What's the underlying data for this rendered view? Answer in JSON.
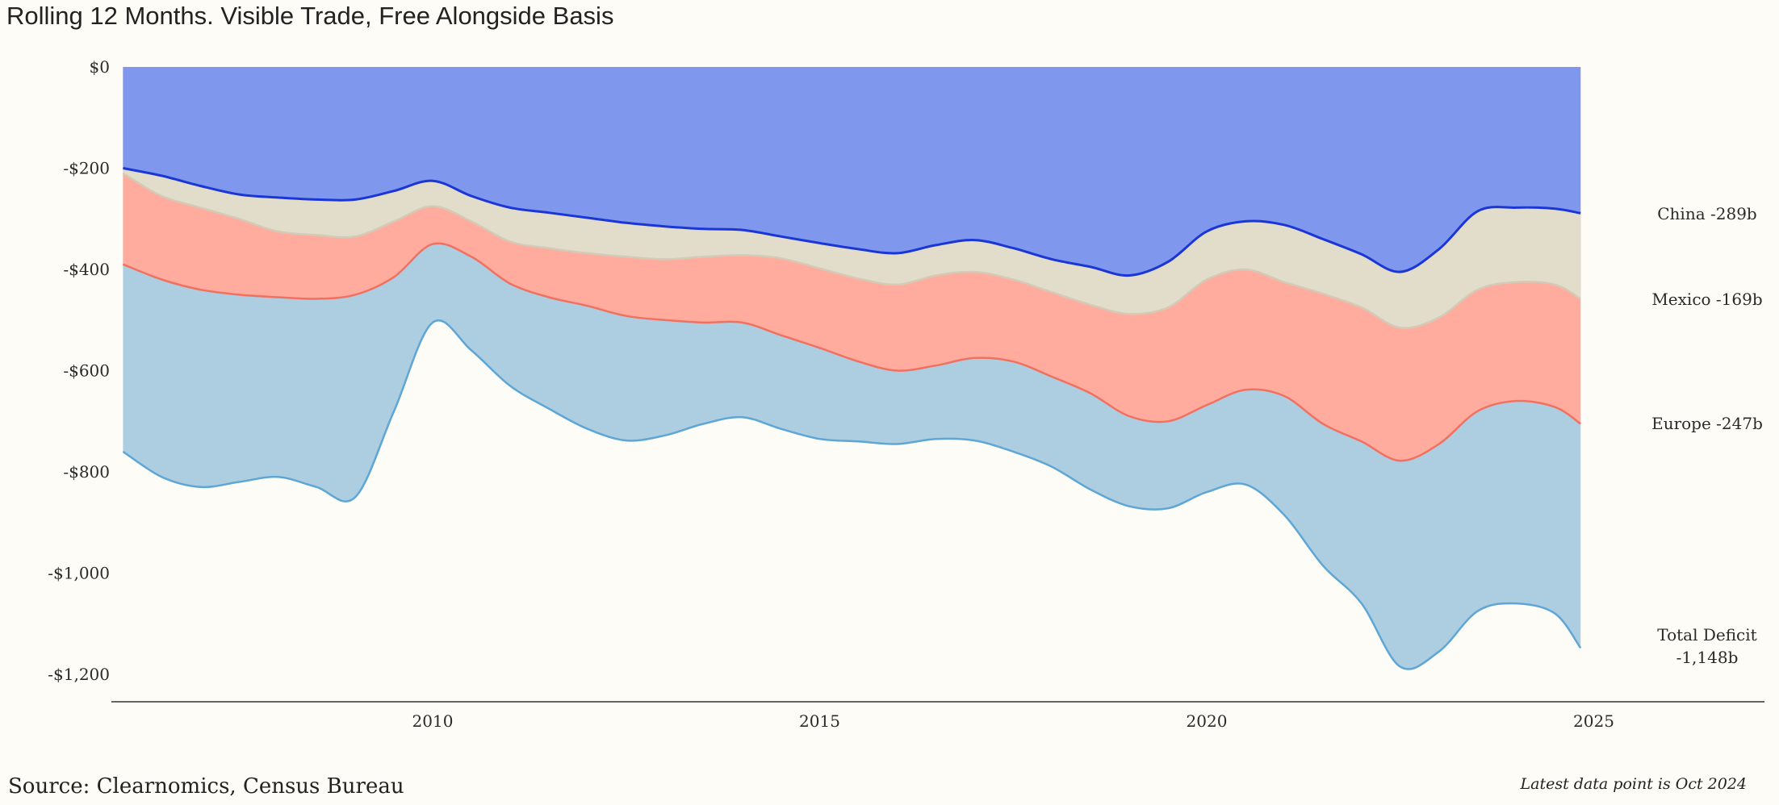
{
  "title": "Rolling 12 Months. Visible Trade, Free Alongside Basis",
  "source": "Source: Clearnomics, Census Bureau",
  "note": "Latest data point is Oct 2024",
  "colors": {
    "background": "#fefcf6",
    "china_fill": "#7f97ec",
    "china_line": "#1a36d6",
    "mexico_fill": "#e2dccb",
    "mexico_line": "#d3cbb6",
    "europe_fill": "#ffac9f",
    "europe_line": "#f2705f",
    "total_fill": "#adcde0",
    "total_line": "#5ea6d6",
    "axis": "#333333"
  },
  "chart_data": {
    "type": "area",
    "title": "Rolling 12 Months. Visible Trade, Free Alongside Basis",
    "xlabel": "",
    "ylabel": "",
    "xlim": [
      2006.0,
      2027.0
    ],
    "ylim": [
      -1250,
      0
    ],
    "grid": false,
    "x_ticks": [
      2010,
      2015,
      2020,
      2025
    ],
    "x_tick_labels": [
      "2010",
      "2015",
      "2020",
      "2025"
    ],
    "y_ticks": [
      0,
      -200,
      -400,
      -600,
      -800,
      -1000,
      -1200
    ],
    "y_tick_labels": [
      "$0",
      "-$200",
      "-$400",
      "-$600",
      "-$800",
      "-$1,000",
      "-$1,200"
    ],
    "x": [
      2006.0,
      2006.5,
      2007.0,
      2007.5,
      2008.0,
      2008.5,
      2009.0,
      2009.5,
      2010.0,
      2010.5,
      2011.0,
      2011.5,
      2012.0,
      2012.5,
      2013.0,
      2013.5,
      2014.0,
      2014.5,
      2015.0,
      2015.5,
      2016.0,
      2016.5,
      2017.0,
      2017.5,
      2018.0,
      2018.5,
      2019.0,
      2019.5,
      2020.0,
      2020.5,
      2021.0,
      2021.5,
      2022.0,
      2022.5,
      2023.0,
      2023.5,
      2024.0,
      2024.5,
      2024.83
    ],
    "series": [
      {
        "name": "China",
        "label": "China -289b",
        "values": [
          -200,
          -215,
          -235,
          -252,
          -258,
          -262,
          -262,
          -245,
          -225,
          -255,
          -278,
          -288,
          -298,
          -308,
          -315,
          -320,
          -322,
          -335,
          -348,
          -360,
          -368,
          -352,
          -342,
          -358,
          -380,
          -395,
          -412,
          -385,
          -325,
          -305,
          -312,
          -340,
          -370,
          -405,
          -360,
          -285,
          -278,
          -280,
          -289
        ]
      },
      {
        "name": "Mexico",
        "label": "Mexico -169b",
        "values": [
          -210,
          -255,
          -278,
          -300,
          -325,
          -332,
          -335,
          -305,
          -275,
          -305,
          -345,
          -358,
          -368,
          -375,
          -380,
          -375,
          -372,
          -378,
          -398,
          -418,
          -430,
          -412,
          -405,
          -420,
          -445,
          -470,
          -488,
          -475,
          -420,
          -400,
          -425,
          -448,
          -475,
          -515,
          -495,
          -440,
          -425,
          -430,
          -458
        ]
      },
      {
        "name": "Europe",
        "label": "Europe -247b",
        "values": [
          -390,
          -420,
          -440,
          -450,
          -455,
          -458,
          -450,
          -415,
          -350,
          -375,
          -428,
          -455,
          -472,
          -492,
          -500,
          -505,
          -505,
          -530,
          -555,
          -582,
          -600,
          -590,
          -575,
          -582,
          -612,
          -645,
          -690,
          -700,
          -668,
          -638,
          -650,
          -705,
          -740,
          -778,
          -745,
          -680,
          -660,
          -672,
          -705
        ]
      },
      {
        "name": "Total Deficit",
        "label": "Total Deficit",
        "label_value": "-1,148b",
        "values": [
          -760,
          -810,
          -830,
          -820,
          -810,
          -830,
          -850,
          -680,
          -505,
          -560,
          -630,
          -675,
          -715,
          -738,
          -728,
          -705,
          -692,
          -715,
          -735,
          -740,
          -745,
          -735,
          -738,
          -760,
          -790,
          -835,
          -868,
          -872,
          -840,
          -825,
          -885,
          -985,
          -1060,
          -1185,
          -1155,
          -1075,
          -1060,
          -1080,
          -1148
        ]
      }
    ]
  }
}
